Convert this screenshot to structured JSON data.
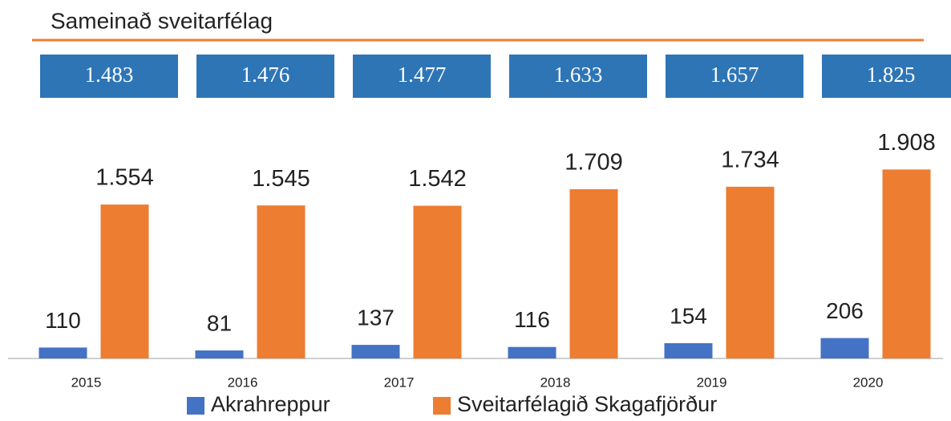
{
  "chart_data": {
    "type": "bar",
    "title": "Sameinað sveitarfélag",
    "summary_boxes": [
      "1.483",
      "1.476",
      "1.477",
      "1.633",
      "1.657",
      "1.825"
    ],
    "categories": [
      "2015",
      "2016",
      "2017",
      "2018",
      "2019",
      "2020"
    ],
    "series": [
      {
        "name": "Akrahreppur",
        "color": "#4472c4",
        "values": [
          110,
          81,
          137,
          116,
          154,
          206
        ]
      },
      {
        "name": "Sveitarfélagið Skagafjörður",
        "color": "#ed7d31",
        "values": [
          1554,
          1545,
          1542,
          1709,
          1734,
          1908
        ],
        "value_labels": [
          "1.554",
          "1.545",
          "1.542",
          "1.709",
          "1.734",
          "1.908"
        ]
      }
    ],
    "ylim": [
      0,
      2000
    ]
  }
}
